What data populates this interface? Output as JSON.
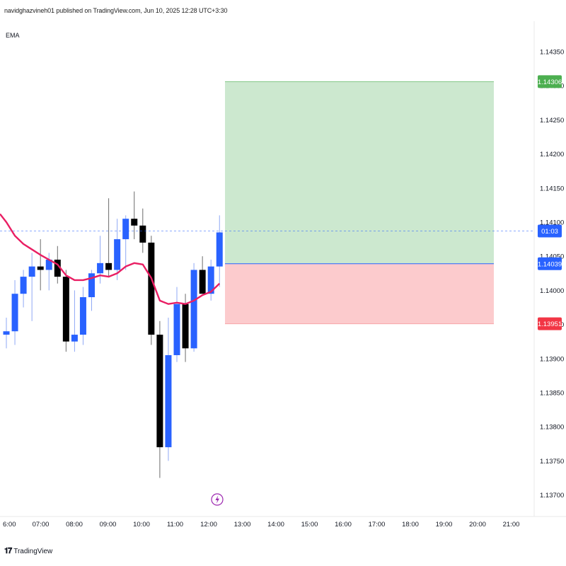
{
  "header": {
    "published": "navidghazvineh01 published on TradingView.com, Jun 10, 2025 12:28 UTC+3:30"
  },
  "indicator_label": "EMA",
  "brand": {
    "logo_icon": "tradingview-logo-icon",
    "name": "TradingView"
  },
  "colors": {
    "bull": "#2962ff",
    "bear": "#000000",
    "ema": "#e91e63",
    "profit_zone": "#cce8cf",
    "loss_zone": "#fccbcd",
    "target_badge": "#4caf50",
    "stop_badge": "#f23645",
    "entry_badge": "#2962ff",
    "crosshair_badge": "#2962ff"
  },
  "chart_data": {
    "type": "candlestick",
    "x_ticks": [
      "6:00",
      "07:00",
      "08:00",
      "09:00",
      "10:00",
      "11:00",
      "12:00",
      "13:00",
      "14:00",
      "15:00",
      "16:00",
      "17:00",
      "18:00",
      "19:00",
      "20:00",
      "21:00"
    ],
    "y_ticks": [
      "1.14350",
      "1.14300",
      "1.14250",
      "1.14200",
      "1.14150",
      "1.14100",
      "1.14050",
      "1.14000",
      "1.13950",
      "1.13900",
      "1.13850",
      "1.13800",
      "1.13750",
      "1.13700"
    ],
    "ylim": [
      1.13675,
      1.14375
    ],
    "candles": [
      {
        "o": 1.13935,
        "h": 1.1396,
        "l": 1.13915,
        "c": 1.1394
      },
      {
        "o": 1.1394,
        "h": 1.14015,
        "l": 1.1392,
        "c": 1.13995
      },
      {
        "o": 1.13995,
        "h": 1.1403,
        "l": 1.13975,
        "c": 1.1402
      },
      {
        "o": 1.1402,
        "h": 1.14055,
        "l": 1.13955,
        "c": 1.14035
      },
      {
        "o": 1.14035,
        "h": 1.14075,
        "l": 1.14,
        "c": 1.1403
      },
      {
        "o": 1.1403,
        "h": 1.14055,
        "l": 1.14,
        "c": 1.14045
      },
      {
        "o": 1.14045,
        "h": 1.14065,
        "l": 1.1401,
        "c": 1.1402
      },
      {
        "o": 1.1402,
        "h": 1.1403,
        "l": 1.1391,
        "c": 1.13925
      },
      {
        "o": 1.13925,
        "h": 1.14,
        "l": 1.1391,
        "c": 1.13935
      },
      {
        "o": 1.13935,
        "h": 1.14005,
        "l": 1.1392,
        "c": 1.1399
      },
      {
        "o": 1.1399,
        "h": 1.1403,
        "l": 1.1397,
        "c": 1.14025
      },
      {
        "o": 1.14025,
        "h": 1.1408,
        "l": 1.1401,
        "c": 1.1404
      },
      {
        "o": 1.1404,
        "h": 1.14135,
        "l": 1.1402,
        "c": 1.1403
      },
      {
        "o": 1.1403,
        "h": 1.14105,
        "l": 1.14015,
        "c": 1.14075
      },
      {
        "o": 1.14075,
        "h": 1.1411,
        "l": 1.1403,
        "c": 1.14105
      },
      {
        "o": 1.14105,
        "h": 1.14145,
        "l": 1.14075,
        "c": 1.14095
      },
      {
        "o": 1.14095,
        "h": 1.1412,
        "l": 1.14055,
        "c": 1.1407
      },
      {
        "o": 1.1407,
        "h": 1.1408,
        "l": 1.1392,
        "c": 1.13935
      },
      {
        "o": 1.13935,
        "h": 1.13955,
        "l": 1.13725,
        "c": 1.1377
      },
      {
        "o": 1.1377,
        "h": 1.1396,
        "l": 1.1375,
        "c": 1.13905
      },
      {
        "o": 1.13905,
        "h": 1.14005,
        "l": 1.13895,
        "c": 1.1398
      },
      {
        "o": 1.1398,
        "h": 1.13995,
        "l": 1.13895,
        "c": 1.13915
      },
      {
        "o": 1.13915,
        "h": 1.1404,
        "l": 1.1391,
        "c": 1.1403
      },
      {
        "o": 1.1403,
        "h": 1.1405,
        "l": 1.13995,
        "c": 1.13995
      },
      {
        "o": 1.13995,
        "h": 1.14045,
        "l": 1.13985,
        "c": 1.14035
      },
      {
        "o": 1.14035,
        "h": 1.1411,
        "l": 1.14005,
        "c": 1.14085
      }
    ],
    "ema": [
      1.141,
      1.1408,
      1.14068,
      1.1406,
      1.14052,
      1.14045,
      1.14038,
      1.14022,
      1.14015,
      1.14015,
      1.14018,
      1.14022,
      1.1402,
      1.14025,
      1.14035,
      1.1404,
      1.14038,
      1.14018,
      1.13985,
      1.1398,
      1.13982,
      1.1398,
      1.13985,
      1.13993,
      1.13998,
      1.1401
    ],
    "position": {
      "type": "long",
      "entry": 1.14039,
      "target": 1.14306,
      "stop": 1.13951,
      "entry_label": "1.14039",
      "target_label": "1.14306",
      "stop_label": "1.13951"
    },
    "crosshair": {
      "price": 1.14087,
      "label": "01:03"
    },
    "grid": false
  }
}
